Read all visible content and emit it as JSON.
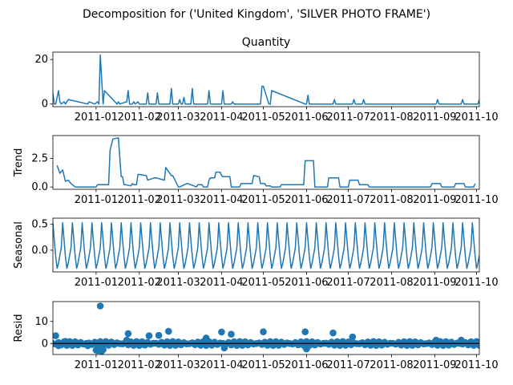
{
  "title": "Decomposition for ('United Kingdom', 'SILVER PHOTO FRAME')",
  "colors": {
    "line": "#1f77b4",
    "axis": "#000000",
    "background": "#ffffff"
  },
  "x_ticks": [
    "2011-01",
    "2011-02",
    "2011-03",
    "2011-04",
    "2011-05",
    "2011-06",
    "2011-07",
    "2011-08",
    "2011-09",
    "2011-10"
  ],
  "chart_data": [
    {
      "type": "line",
      "title": "Quantity",
      "ylabel": "",
      "x_range": [
        "2010-12-01",
        "2011-10-03"
      ],
      "ylim": [
        -1.2,
        23.3
      ],
      "y_ticks": [
        0,
        20
      ],
      "series": [
        {
          "x": [
            "2010-12-01",
            "2010-12-02",
            "2010-12-03",
            "2010-12-05",
            "2010-12-06",
            "2010-12-07",
            "2010-12-09",
            "2010-12-10",
            "2010-12-12",
            "2010-12-26",
            "2010-12-27",
            "2010-12-31",
            "2011-01-02",
            "2011-01-03",
            "2011-01-04",
            "2011-01-06",
            "2011-01-07",
            "2011-01-16",
            "2011-01-17",
            "2011-01-18",
            "2011-01-23",
            "2011-01-24",
            "2011-01-25",
            "2011-01-27",
            "2011-01-28",
            "2011-01-29",
            "2011-01-31",
            "2011-02-01",
            "2011-02-06",
            "2011-02-07",
            "2011-02-08",
            "2011-02-13",
            "2011-02-14",
            "2011-02-15",
            "2011-02-23",
            "2011-02-24",
            "2011-02-25",
            "2011-03-01",
            "2011-03-02",
            "2011-03-03",
            "2011-03-04",
            "2011-03-05",
            "2011-03-06",
            "2011-03-10",
            "2011-03-11",
            "2011-03-12",
            "2011-03-22",
            "2011-03-23",
            "2011-03-24",
            "2011-04-01",
            "2011-04-02",
            "2011-04-03",
            "2011-04-08",
            "2011-04-09",
            "2011-04-10",
            "2011-04-29",
            "2011-04-30",
            "2011-05-01",
            "2011-05-05",
            "2011-05-06",
            "2011-05-07",
            "2011-05-31",
            "2011-06-01",
            "2011-06-02",
            "2011-06-03",
            "2011-06-20",
            "2011-06-21",
            "2011-06-22",
            "2011-07-04",
            "2011-07-05",
            "2011-07-06",
            "2011-07-11",
            "2011-07-12",
            "2011-07-13",
            "2011-09-02",
            "2011-09-03",
            "2011-09-04",
            "2011-09-20",
            "2011-09-21",
            "2011-09-22",
            "2011-10-02",
            "2011-10-03"
          ],
          "y": [
            5,
            0,
            0,
            6,
            1,
            0,
            1,
            0,
            2,
            0,
            1,
            0,
            1,
            0,
            22,
            0,
            6,
            0,
            1,
            0,
            1,
            6,
            0,
            0,
            1,
            0,
            1,
            0,
            0,
            5,
            0,
            0,
            5,
            0,
            0,
            7,
            0,
            0,
            2,
            0,
            0,
            3,
            0,
            0,
            7,
            0,
            0,
            6,
            0,
            0,
            6,
            0,
            0,
            1,
            0,
            0,
            8,
            8,
            0,
            0,
            6,
            0,
            0,
            4,
            0,
            0,
            2,
            0,
            0,
            2,
            0,
            0,
            2,
            0,
            0,
            2,
            0,
            0,
            2,
            0,
            0,
            2
          ]
        }
      ]
    },
    {
      "type": "line",
      "title": "",
      "ylabel": "Trend",
      "x_range": [
        "2010-12-01",
        "2011-10-03"
      ],
      "ylim": [
        -0.2,
        4.5
      ],
      "y_ticks": [
        0.0,
        2.5
      ],
      "series": [
        {
          "x": [
            "2010-12-04",
            "2010-12-06",
            "2010-12-08",
            "2010-12-10",
            "2010-12-12",
            "2010-12-14",
            "2010-12-17",
            "2011-01-01",
            "2011-01-02",
            "2011-01-10",
            "2011-01-11",
            "2011-01-13",
            "2011-01-17",
            "2011-01-19",
            "2011-01-20",
            "2011-01-21",
            "2011-01-22",
            "2011-01-26",
            "2011-01-27",
            "2011-01-28",
            "2011-01-30",
            "2011-01-31",
            "2011-02-01",
            "2011-02-06",
            "2011-02-07",
            "2011-02-12",
            "2011-02-13",
            "2011-02-19",
            "2011-02-20",
            "2011-02-24",
            "2011-02-25",
            "2011-03-01",
            "2011-03-02",
            "2011-03-07",
            "2011-03-08",
            "2011-03-14",
            "2011-03-15",
            "2011-03-18",
            "2011-03-19",
            "2011-03-22",
            "2011-03-23",
            "2011-03-24",
            "2011-03-27",
            "2011-03-28",
            "2011-03-31",
            "2011-04-01",
            "2011-04-02",
            "2011-04-07",
            "2011-04-08",
            "2011-04-14",
            "2011-04-15",
            "2011-04-23",
            "2011-04-24",
            "2011-04-28",
            "2011-04-29",
            "2011-05-02",
            "2011-05-03",
            "2011-05-06",
            "2011-05-07",
            "2011-05-13",
            "2011-05-14",
            "2011-05-30",
            "2011-05-31",
            "2011-06-06",
            "2011-06-07",
            "2011-06-16",
            "2011-06-17",
            "2011-06-24",
            "2011-06-25",
            "2011-07-01",
            "2011-07-02",
            "2011-07-08",
            "2011-07-09",
            "2011-07-15",
            "2011-07-16",
            "2011-08-29",
            "2011-08-30",
            "2011-09-05",
            "2011-09-06",
            "2011-09-15",
            "2011-09-16",
            "2011-09-22",
            "2011-09-23",
            "2011-09-29",
            "2011-09-30"
          ],
          "y": [
            1.9,
            1.2,
            1.5,
            0.5,
            0.6,
            0.3,
            0,
            0,
            0.2,
            0.2,
            3.2,
            4.2,
            4.3,
            0.9,
            0.9,
            0.2,
            0.2,
            0.1,
            0.3,
            0.2,
            0.2,
            1.1,
            1.1,
            1.0,
            0.6,
            0.8,
            0.8,
            0.6,
            1.7,
            1.0,
            1.0,
            0.0,
            0.0,
            0.3,
            0.3,
            0.0,
            0.2,
            0.2,
            0.0,
            0.0,
            0.6,
            0.8,
            0.8,
            1.3,
            1.3,
            1.0,
            0.9,
            0.9,
            0.0,
            0.0,
            0.3,
            0.3,
            1.0,
            0.9,
            0.3,
            0.3,
            0.1,
            0.1,
            0.0,
            0.0,
            0.2,
            0.2,
            2.3,
            2.3,
            0.0,
            0.0,
            0.8,
            0.8,
            0.0,
            0.0,
            0.6,
            0.6,
            0.2,
            0.2,
            0.0,
            0.0,
            0.3,
            0.3,
            0.0,
            0.0,
            0.3,
            0.3,
            0.0,
            0.0,
            0.3
          ]
        }
      ]
    },
    {
      "type": "line",
      "title": "",
      "ylabel": "Seasonal",
      "x_range": [
        "2010-12-01",
        "2011-10-03"
      ],
      "ylim": [
        -0.42,
        0.62
      ],
      "y_ticks": [
        0.0,
        0.5
      ],
      "period_days": 7,
      "weekly_pattern": [
        0.53,
        0.2,
        -0.12,
        -0.35,
        -0.25,
        -0.1,
        0.05
      ],
      "series": []
    },
    {
      "type": "scatter",
      "title": "",
      "ylabel": "Resid",
      "x_range": [
        "2010-12-01",
        "2011-10-03"
      ],
      "ylim": [
        -5,
        19
      ],
      "y_ticks": [
        0,
        10
      ],
      "baseline_points_per_week": 3,
      "series": [
        {
          "x": [
            "2010-12-03",
            "2010-12-05",
            "2010-12-10",
            "2010-12-26",
            "2011-01-01",
            "2011-01-02",
            "2011-01-03",
            "2011-01-04",
            "2011-01-05",
            "2011-01-06",
            "2011-01-23",
            "2011-01-24",
            "2011-02-08",
            "2011-02-15",
            "2011-02-22",
            "2011-03-21",
            "2011-04-01",
            "2011-04-03",
            "2011-04-08",
            "2011-05-01",
            "2011-05-31",
            "2011-06-01",
            "2011-06-20",
            "2011-07-04",
            "2011-09-02",
            "2011-09-20"
          ],
          "y": [
            3.5,
            -1,
            1,
            -1,
            -3,
            -3.2,
            -3,
            17,
            -3.5,
            -2.8,
            1.5,
            4.5,
            3.5,
            3.7,
            5.5,
            2.5,
            5.2,
            -2,
            4.2,
            5.3,
            5.3,
            -2.5,
            4.8,
            3,
            1.5,
            1.5
          ]
        }
      ]
    }
  ]
}
